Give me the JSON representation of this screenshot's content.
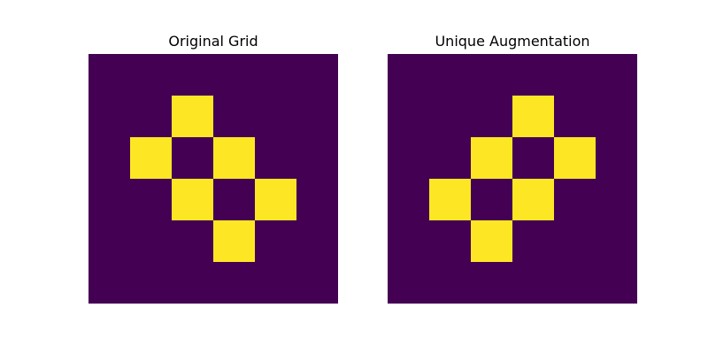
{
  "chart_data": [
    {
      "type": "heatmap",
      "title": "Original Grid",
      "rows": 6,
      "cols": 6,
      "cells": [
        [
          0,
          0,
          0,
          0,
          0,
          0
        ],
        [
          0,
          0,
          1,
          0,
          0,
          0
        ],
        [
          0,
          1,
          0,
          1,
          0,
          0
        ],
        [
          0,
          0,
          1,
          0,
          1,
          0
        ],
        [
          0,
          0,
          0,
          1,
          0,
          0
        ],
        [
          0,
          0,
          0,
          0,
          0,
          0
        ]
      ],
      "colors": {
        "0": "#440154",
        "1": "#fde725"
      },
      "axes_visible": false
    },
    {
      "type": "heatmap",
      "title": "Unique Augmentation",
      "rows": 6,
      "cols": 6,
      "cells": [
        [
          0,
          0,
          0,
          0,
          0,
          0
        ],
        [
          0,
          0,
          0,
          1,
          0,
          0
        ],
        [
          0,
          0,
          1,
          0,
          1,
          0
        ],
        [
          0,
          1,
          0,
          1,
          0,
          0
        ],
        [
          0,
          0,
          1,
          0,
          0,
          0
        ],
        [
          0,
          0,
          0,
          0,
          0,
          0
        ]
      ],
      "colors": {
        "0": "#440154",
        "1": "#fde725"
      },
      "axes_visible": false
    }
  ]
}
